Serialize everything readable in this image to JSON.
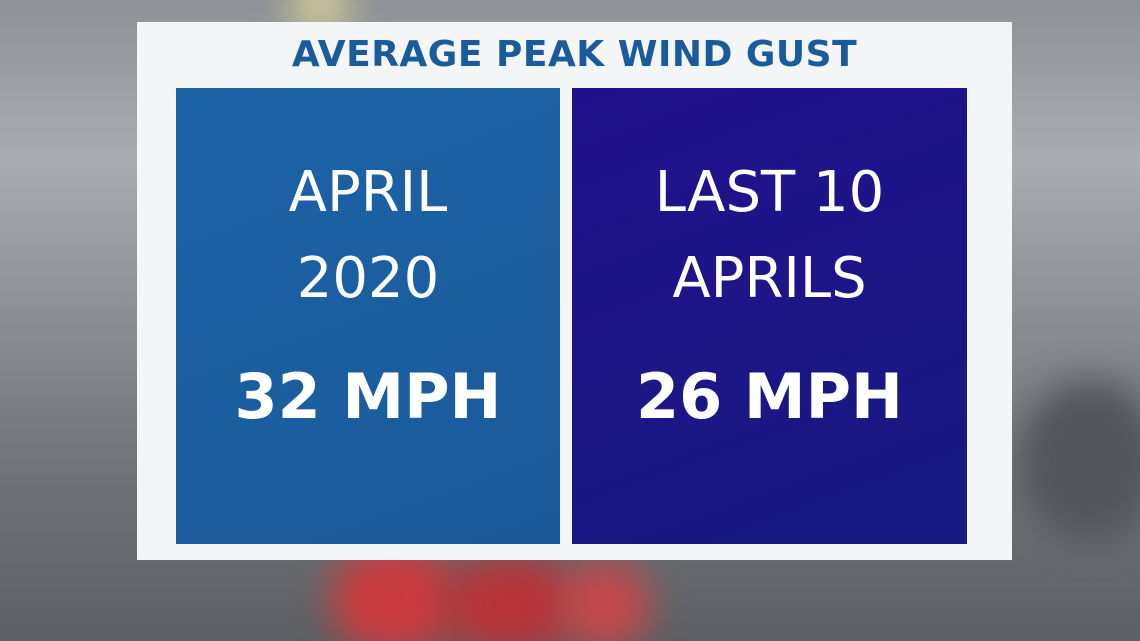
{
  "header": {
    "title": "AVERAGE PEAK WIND GUST"
  },
  "panels": [
    {
      "label_lines": [
        "APRIL",
        "2020"
      ],
      "value": "32 MPH"
    },
    {
      "label_lines": [
        "LAST 10",
        "APRILS"
      ],
      "value": "26 MPH"
    }
  ]
}
